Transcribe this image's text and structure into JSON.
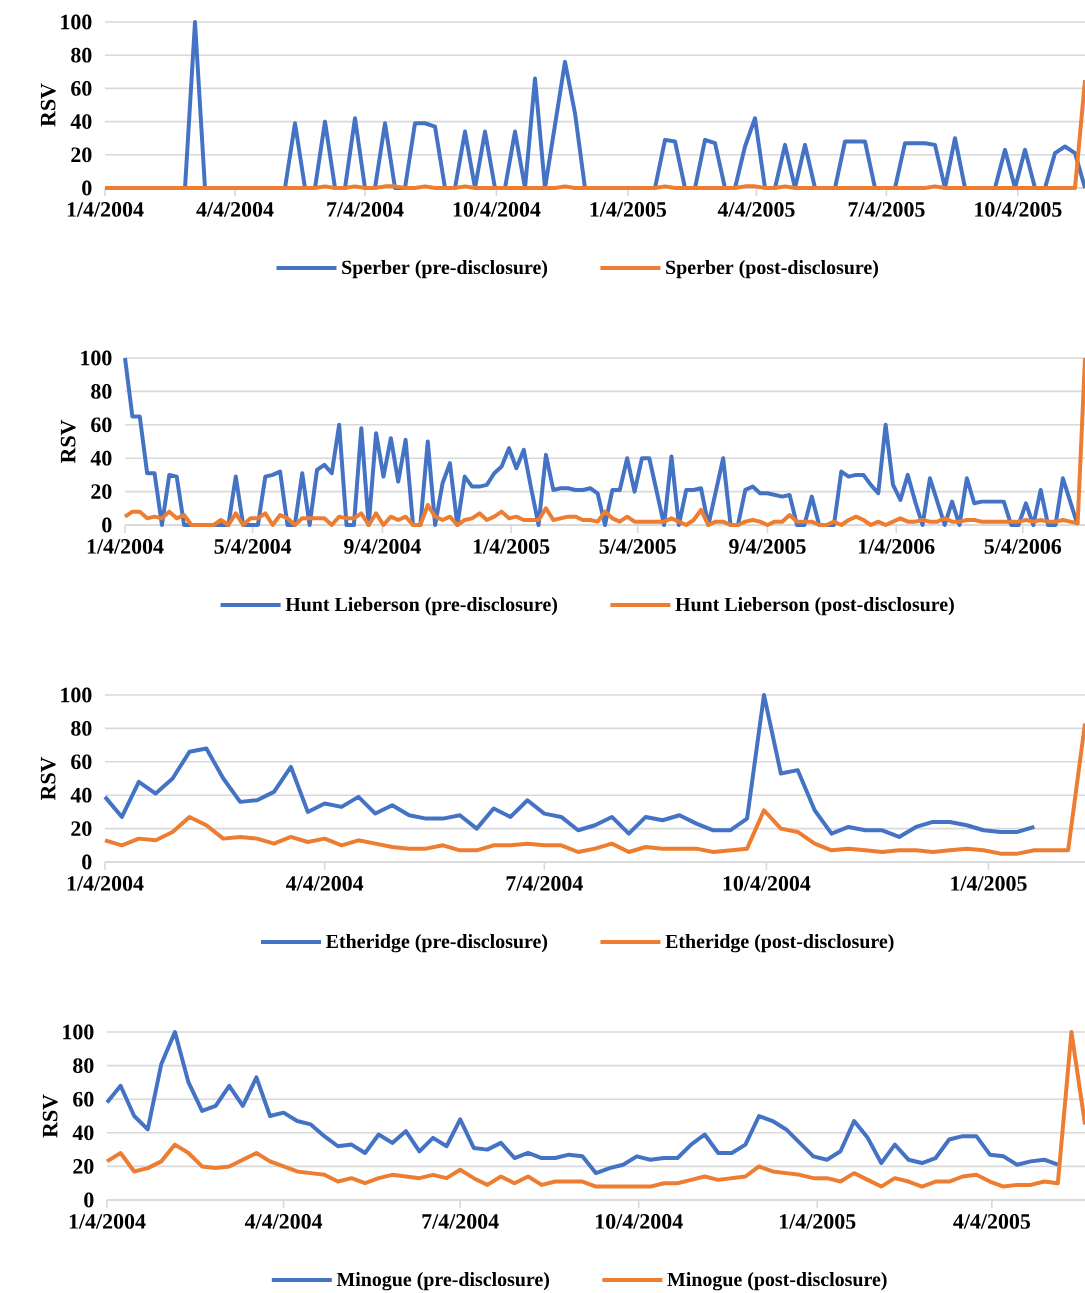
{
  "chart_data": [
    {
      "type": "line",
      "ylabel": "RSV",
      "legend": "bottom",
      "grid": "y",
      "line_style": "solid",
      "x": [
        "2004-01-04",
        "2004-01-11",
        "2004-01-18",
        "2004-01-25",
        "2004-02-01",
        "2004-02-08",
        "2004-02-15",
        "2004-02-22",
        "2004-02-29",
        "2004-03-07",
        "2004-03-14",
        "2004-03-21",
        "2004-03-28",
        "2004-04-04",
        "2004-04-11",
        "2004-04-18",
        "2004-04-25",
        "2004-05-02",
        "2004-05-09",
        "2004-05-16",
        "2004-05-23",
        "2004-05-30",
        "2004-06-06",
        "2004-06-13",
        "2004-06-20",
        "2004-06-27",
        "2004-07-04",
        "2004-07-11",
        "2004-07-18",
        "2004-07-25",
        "2004-08-01",
        "2004-08-08",
        "2004-08-15",
        "2004-08-22",
        "2004-08-29",
        "2004-09-05",
        "2004-09-12",
        "2004-09-19",
        "2004-09-26",
        "2004-10-03",
        "2004-10-10",
        "2004-10-17",
        "2004-10-24",
        "2004-10-31",
        "2004-11-07",
        "2004-11-14",
        "2004-11-21",
        "2004-11-28",
        "2004-12-05",
        "2004-12-12",
        "2004-12-19",
        "2004-12-26",
        "2005-01-02",
        "2005-01-09",
        "2005-01-16",
        "2005-01-23",
        "2005-01-30",
        "2005-02-06",
        "2005-02-13",
        "2005-02-20",
        "2005-02-27",
        "2005-03-06",
        "2005-03-13",
        "2005-03-20",
        "2005-03-27",
        "2005-04-03",
        "2005-04-10",
        "2005-04-17",
        "2005-04-24",
        "2005-05-01",
        "2005-05-08",
        "2005-05-15",
        "2005-05-22",
        "2005-05-29",
        "2005-06-05",
        "2005-06-12",
        "2005-06-19",
        "2005-06-26",
        "2005-07-03",
        "2005-07-10",
        "2005-07-17",
        "2005-07-24",
        "2005-07-31",
        "2005-08-07",
        "2005-08-14",
        "2005-08-21",
        "2005-08-28",
        "2005-09-04",
        "2005-09-11",
        "2005-09-18",
        "2005-09-25",
        "2005-10-02",
        "2005-10-09",
        "2005-10-16",
        "2005-10-23",
        "2005-10-30",
        "2005-11-06",
        "2005-11-13",
        "2005-11-20"
      ],
      "xlim": [
        "2004-01-04",
        "2005-11-20"
      ],
      "xticks": [
        {
          "value": "2004-01-04",
          "label": "1/4/2004"
        },
        {
          "value": "2004-04-04",
          "label": "4/4/2004"
        },
        {
          "value": "2004-07-04",
          "label": "7/4/2004"
        },
        {
          "value": "2004-10-04",
          "label": "10/4/2004"
        },
        {
          "value": "2005-01-04",
          "label": "1/4/2005"
        },
        {
          "value": "2005-04-04",
          "label": "4/4/2005"
        },
        {
          "value": "2005-07-04",
          "label": "7/4/2005"
        },
        {
          "value": "2005-10-04",
          "label": "10/4/2005"
        }
      ],
      "ylim": [
        0,
        100
      ],
      "yticks": [
        0,
        20,
        40,
        60,
        80,
        100
      ],
      "series": [
        {
          "name": "Sperber (pre-disclosure)",
          "color": "#4472c4",
          "values": [
            null,
            null,
            null,
            null,
            null,
            null,
            0,
            0,
            0,
            100,
            0,
            0,
            0,
            0,
            0,
            0,
            0,
            0,
            0,
            39,
            0,
            0,
            40,
            0,
            0,
            42,
            0,
            0,
            39,
            0,
            0,
            39,
            39,
            37,
            0,
            0,
            34,
            0,
            34,
            0,
            0,
            34,
            0,
            66,
            0,
            38,
            76,
            45,
            0,
            0,
            0,
            0,
            0,
            0,
            0,
            0,
            29,
            28,
            0,
            0,
            29,
            27,
            0,
            0,
            25,
            42,
            0,
            0,
            26,
            0,
            26,
            0,
            0,
            0,
            28,
            28,
            28,
            0,
            0,
            0,
            27,
            27,
            27,
            26,
            0,
            30,
            0,
            0,
            0,
            0,
            23,
            0,
            23,
            0,
            0,
            21,
            25,
            21,
            0
          ]
        },
        {
          "name": "Sperber (post-disclosure)",
          "color": "#ed7d31",
          "values": [
            0,
            0,
            0,
            0,
            0,
            0,
            0,
            0,
            0,
            0,
            0,
            0,
            0,
            0,
            0,
            0,
            0,
            0,
            0,
            0,
            0,
            0,
            1,
            0,
            0,
            1,
            0,
            0,
            1,
            1,
            0,
            0,
            1,
            0,
            0,
            0,
            1,
            0,
            0,
            0,
            0,
            0,
            0,
            0,
            0,
            0,
            1,
            0,
            0,
            0,
            0,
            0,
            0,
            0,
            0,
            0,
            1,
            0,
            0,
            0,
            0,
            0,
            0,
            0,
            1,
            1,
            0,
            0,
            1,
            0,
            0,
            0,
            0,
            0,
            0,
            0,
            0,
            0,
            0,
            0,
            0,
            0,
            0,
            1,
            0,
            0,
            0,
            0,
            0,
            0,
            0,
            0,
            0,
            0,
            0,
            0,
            0,
            0,
            65
          ]
        }
      ]
    },
    {
      "type": "line",
      "ylabel": "RSV",
      "legend": "bottom",
      "grid": "y",
      "line_style": "solid",
      "x": [
        "2004-01-04",
        "2004-01-11",
        "2004-01-18",
        "2004-01-25",
        "2004-02-01",
        "2004-02-08",
        "2004-02-15",
        "2004-02-22",
        "2004-02-29",
        "2004-03-07",
        "2004-03-14",
        "2004-03-21",
        "2004-03-28",
        "2004-04-04",
        "2004-04-11",
        "2004-04-18",
        "2004-04-25",
        "2004-05-02",
        "2004-05-09",
        "2004-05-16",
        "2004-05-23",
        "2004-05-30",
        "2004-06-06",
        "2004-06-13",
        "2004-06-20",
        "2004-06-27",
        "2004-07-04",
        "2004-07-11",
        "2004-07-18",
        "2004-07-25",
        "2004-08-01",
        "2004-08-08",
        "2004-08-15",
        "2004-08-22",
        "2004-08-29",
        "2004-09-05",
        "2004-09-12",
        "2004-09-19",
        "2004-09-26",
        "2004-10-03",
        "2004-10-10",
        "2004-10-17",
        "2004-10-24",
        "2004-10-31",
        "2004-11-07",
        "2004-11-14",
        "2004-11-21",
        "2004-11-28",
        "2004-12-05",
        "2004-12-12",
        "2004-12-19",
        "2004-12-26",
        "2005-01-02",
        "2005-01-09",
        "2005-01-16",
        "2005-01-23",
        "2005-01-30",
        "2005-02-06",
        "2005-02-13",
        "2005-02-20",
        "2005-02-27",
        "2005-03-06",
        "2005-03-13",
        "2005-03-20",
        "2005-03-27",
        "2005-04-03",
        "2005-04-10",
        "2005-04-17",
        "2005-04-24",
        "2005-05-01",
        "2005-05-08",
        "2005-05-15",
        "2005-05-22",
        "2005-05-29",
        "2005-06-05",
        "2005-06-12",
        "2005-06-19",
        "2005-06-26",
        "2005-07-03",
        "2005-07-10",
        "2005-07-17",
        "2005-07-24",
        "2005-07-31",
        "2005-08-07",
        "2005-08-14",
        "2005-08-21",
        "2005-08-28",
        "2005-09-04",
        "2005-09-11",
        "2005-09-18",
        "2005-09-25",
        "2005-10-02",
        "2005-10-09",
        "2005-10-16",
        "2005-10-23",
        "2005-10-30",
        "2005-11-06",
        "2005-11-13",
        "2005-11-20",
        "2005-11-27",
        "2005-12-04",
        "2005-12-11",
        "2005-12-18",
        "2005-12-25",
        "2006-01-01",
        "2006-01-08",
        "2006-01-15",
        "2006-01-22",
        "2006-01-29",
        "2006-02-05",
        "2006-02-12",
        "2006-02-19",
        "2006-02-26",
        "2006-03-05",
        "2006-03-12",
        "2006-03-19",
        "2006-03-26",
        "2006-04-02",
        "2006-04-09",
        "2006-04-16",
        "2006-04-23",
        "2006-04-30",
        "2006-05-07",
        "2006-05-14",
        "2006-05-21",
        "2006-05-28",
        "2006-06-04",
        "2006-06-11",
        "2006-06-18",
        "2006-06-25",
        "2006-07-02"
      ],
      "xlim": [
        "2004-01-04",
        "2006-07-02"
      ],
      "xticks": [
        {
          "value": "2004-01-04",
          "label": "1/4/2004"
        },
        {
          "value": "2004-05-04",
          "label": "5/4/2004"
        },
        {
          "value": "2004-09-04",
          "label": "9/4/2004"
        },
        {
          "value": "2005-01-04",
          "label": "1/4/2005"
        },
        {
          "value": "2005-05-04",
          "label": "5/4/2005"
        },
        {
          "value": "2005-09-04",
          "label": "9/4/2005"
        },
        {
          "value": "2006-01-04",
          "label": "1/4/2006"
        },
        {
          "value": "2006-05-04",
          "label": "5/4/2006"
        }
      ],
      "ylim": [
        0,
        100
      ],
      "yticks": [
        0,
        20,
        40,
        60,
        80,
        100
      ],
      "series": [
        {
          "name": "Hunt Lieberson (pre-disclosure)",
          "color": "#4472c4",
          "values": [
            100,
            65,
            65,
            31,
            31,
            0,
            30,
            29,
            0,
            0,
            0,
            0,
            0,
            0,
            0,
            29,
            0,
            0,
            0,
            29,
            30,
            32,
            0,
            0,
            31,
            0,
            33,
            36,
            31,
            60,
            0,
            0,
            58,
            0,
            55,
            29,
            52,
            26,
            51,
            0,
            0,
            50,
            0,
            25,
            37,
            0,
            29,
            23,
            23,
            24,
            31,
            35,
            46,
            34,
            45,
            22,
            0,
            42,
            21,
            22,
            22,
            21,
            21,
            22,
            19,
            0,
            21,
            21,
            40,
            20,
            40,
            40,
            20,
            0,
            41,
            0,
            21,
            21,
            22,
            0,
            20,
            40,
            0,
            0,
            21,
            23,
            19,
            19,
            18,
            17,
            18,
            0,
            0,
            17,
            0,
            0,
            0,
            32,
            29,
            30,
            30,
            24,
            19,
            60,
            24,
            15,
            30,
            14,
            0,
            28,
            14,
            0,
            14,
            0,
            28,
            13,
            14,
            14,
            14,
            14,
            0,
            0,
            13,
            0,
            21,
            0,
            0,
            28,
            14,
            0,
            null
          ]
        },
        {
          "name": "Hunt Lieberson (post-disclosure)",
          "color": "#ed7d31",
          "values": [
            5,
            8,
            8,
            4,
            5,
            4,
            8,
            4,
            6,
            0,
            0,
            0,
            0,
            3,
            0,
            7,
            0,
            4,
            4,
            7,
            0,
            6,
            4,
            0,
            4,
            4,
            4,
            4,
            0,
            5,
            4,
            4,
            7,
            0,
            7,
            0,
            5,
            3,
            5,
            0,
            0,
            12,
            5,
            3,
            5,
            0,
            3,
            4,
            7,
            3,
            5,
            8,
            4,
            5,
            3,
            3,
            3,
            10,
            3,
            4,
            5,
            5,
            3,
            3,
            2,
            8,
            4,
            2,
            5,
            2,
            2,
            2,
            2,
            2,
            4,
            2,
            0,
            3,
            9,
            0,
            2,
            2,
            0,
            0,
            2,
            3,
            2,
            0,
            2,
            2,
            6,
            2,
            2,
            2,
            0,
            0,
            2,
            0,
            3,
            5,
            3,
            0,
            2,
            0,
            2,
            4,
            2,
            2,
            3,
            2,
            2,
            4,
            2,
            2,
            3,
            3,
            2,
            2,
            2,
            2,
            2,
            2,
            3,
            2,
            3,
            2,
            2,
            3,
            2,
            1,
            100
          ]
        }
      ]
    },
    {
      "type": "line",
      "ylabel": "RSV",
      "legend": "bottom",
      "grid": "y",
      "line_style": "solid",
      "x": [
        "2004-01-04",
        "2004-01-11",
        "2004-01-18",
        "2004-01-25",
        "2004-02-01",
        "2004-02-08",
        "2004-02-15",
        "2004-02-22",
        "2004-02-29",
        "2004-03-07",
        "2004-03-14",
        "2004-03-21",
        "2004-03-28",
        "2004-04-04",
        "2004-04-11",
        "2004-04-18",
        "2004-04-25",
        "2004-05-02",
        "2004-05-09",
        "2004-05-16",
        "2004-05-23",
        "2004-05-30",
        "2004-06-06",
        "2004-06-13",
        "2004-06-20",
        "2004-06-27",
        "2004-07-04",
        "2004-07-11",
        "2004-07-18",
        "2004-07-25",
        "2004-08-01",
        "2004-08-08",
        "2004-08-15",
        "2004-08-22",
        "2004-08-29",
        "2004-09-05",
        "2004-09-12",
        "2004-09-19",
        "2004-09-26",
        "2004-10-03",
        "2004-10-10",
        "2004-10-17",
        "2004-10-24",
        "2004-10-31",
        "2004-11-07",
        "2004-11-14",
        "2004-11-21",
        "2004-11-28",
        "2004-12-05",
        "2004-12-12",
        "2004-12-19",
        "2004-12-26",
        "2005-01-02",
        "2005-01-09",
        "2005-01-16",
        "2005-01-23",
        "2005-01-30",
        "2005-02-06",
        "2005-02-13"
      ],
      "xlim": [
        "2004-01-04",
        "2005-02-13"
      ],
      "xticks": [
        {
          "value": "2004-01-04",
          "label": "1/4/2004"
        },
        {
          "value": "2004-04-04",
          "label": "4/4/2004"
        },
        {
          "value": "2004-07-04",
          "label": "7/4/2004"
        },
        {
          "value": "2004-10-04",
          "label": "10/4/2004"
        },
        {
          "value": "2005-01-04",
          "label": "1/4/2005"
        }
      ],
      "ylim": [
        0,
        100
      ],
      "yticks": [
        0,
        20,
        40,
        60,
        80,
        100
      ],
      "series": [
        {
          "name": "Etheridge (pre-disclosure)",
          "color": "#4472c4",
          "values": [
            39,
            27,
            48,
            41,
            50,
            66,
            68,
            50,
            36,
            37,
            42,
            57,
            30,
            35,
            33,
            39,
            29,
            34,
            28,
            26,
            26,
            28,
            20,
            32,
            27,
            37,
            29,
            27,
            19,
            22,
            27,
            17,
            27,
            25,
            28,
            23,
            19,
            19,
            26,
            100,
            53,
            55,
            31,
            17,
            21,
            19,
            19,
            15,
            21,
            24,
            24,
            22,
            19,
            18,
            18,
            21,
            null,
            null,
            null
          ]
        },
        {
          "name": "Etheridge (post-disclosure)",
          "color": "#ed7d31",
          "values": [
            13,
            10,
            14,
            13,
            18,
            27,
            22,
            14,
            15,
            14,
            11,
            15,
            12,
            14,
            10,
            13,
            11,
            9,
            8,
            8,
            10,
            7,
            7,
            10,
            10,
            11,
            10,
            10,
            6,
            8,
            11,
            6,
            9,
            8,
            8,
            8,
            6,
            7,
            8,
            31,
            20,
            18,
            11,
            7,
            8,
            7,
            6,
            7,
            7,
            6,
            7,
            8,
            7,
            5,
            5,
            7,
            7,
            7,
            83
          ]
        }
      ]
    },
    {
      "type": "line",
      "ylabel": "RSV",
      "legend": "bottom",
      "grid": "y",
      "line_style": "solid",
      "x": [
        "2004-01-04",
        "2004-01-11",
        "2004-01-18",
        "2004-01-25",
        "2004-02-01",
        "2004-02-08",
        "2004-02-15",
        "2004-02-22",
        "2004-02-29",
        "2004-03-07",
        "2004-03-14",
        "2004-03-21",
        "2004-03-28",
        "2004-04-04",
        "2004-04-11",
        "2004-04-18",
        "2004-04-25",
        "2004-05-02",
        "2004-05-09",
        "2004-05-16",
        "2004-05-23",
        "2004-05-30",
        "2004-06-06",
        "2004-06-13",
        "2004-06-20",
        "2004-06-27",
        "2004-07-04",
        "2004-07-11",
        "2004-07-18",
        "2004-07-25",
        "2004-08-01",
        "2004-08-08",
        "2004-08-15",
        "2004-08-22",
        "2004-08-29",
        "2004-09-05",
        "2004-09-12",
        "2004-09-19",
        "2004-09-26",
        "2004-10-03",
        "2004-10-10",
        "2004-10-17",
        "2004-10-24",
        "2004-10-31",
        "2004-11-07",
        "2004-11-14",
        "2004-11-21",
        "2004-11-28",
        "2004-12-05",
        "2004-12-12",
        "2004-12-19",
        "2004-12-26",
        "2005-01-02",
        "2005-01-09",
        "2005-01-16",
        "2005-01-23",
        "2005-01-30",
        "2005-02-06",
        "2005-02-13",
        "2005-02-20",
        "2005-02-27",
        "2005-03-06",
        "2005-03-13",
        "2005-03-20",
        "2005-03-27",
        "2005-04-03",
        "2005-04-10",
        "2005-04-17",
        "2005-04-24",
        "2005-05-01",
        "2005-05-08",
        "2005-05-15",
        "2005-05-22"
      ],
      "xlim": [
        "2004-01-04",
        "2005-05-22"
      ],
      "xticks": [
        {
          "value": "2004-01-04",
          "label": "1/4/2004"
        },
        {
          "value": "2004-04-04",
          "label": "4/4/2004"
        },
        {
          "value": "2004-07-04",
          "label": "7/4/2004"
        },
        {
          "value": "2004-10-04",
          "label": "10/4/2004"
        },
        {
          "value": "2005-01-04",
          "label": "1/4/2005"
        },
        {
          "value": "2005-04-04",
          "label": "4/4/2005"
        }
      ],
      "ylim": [
        0,
        100
      ],
      "yticks": [
        0,
        20,
        40,
        60,
        80,
        100
      ],
      "series": [
        {
          "name": "Minogue (pre-disclosure)",
          "color": "#4472c4",
          "values": [
            58,
            68,
            50,
            42,
            81,
            100,
            70,
            53,
            56,
            68,
            56,
            73,
            50,
            52,
            47,
            45,
            38,
            32,
            33,
            28,
            39,
            34,
            41,
            29,
            37,
            32,
            48,
            31,
            30,
            34,
            25,
            28,
            25,
            25,
            27,
            26,
            16,
            19,
            21,
            26,
            24,
            25,
            25,
            33,
            39,
            28,
            28,
            33,
            50,
            47,
            42,
            34,
            26,
            24,
            29,
            47,
            37,
            22,
            33,
            24,
            22,
            25,
            36,
            38,
            38,
            27,
            26,
            21,
            23,
            24,
            21,
            null,
            null
          ]
        },
        {
          "name": "Minogue (post-disclosure)",
          "color": "#ed7d31",
          "values": [
            23,
            28,
            17,
            19,
            23,
            33,
            28,
            20,
            19,
            20,
            24,
            28,
            23,
            20,
            17,
            16,
            15,
            11,
            13,
            10,
            13,
            15,
            14,
            13,
            15,
            13,
            18,
            13,
            9,
            14,
            10,
            14,
            9,
            11,
            11,
            11,
            8,
            8,
            8,
            8,
            8,
            10,
            10,
            12,
            14,
            12,
            13,
            14,
            20,
            17,
            16,
            15,
            13,
            13,
            11,
            16,
            12,
            8,
            13,
            11,
            8,
            11,
            11,
            14,
            15,
            11,
            8,
            9,
            9,
            11,
            10,
            100,
            45
          ]
        }
      ]
    }
  ]
}
